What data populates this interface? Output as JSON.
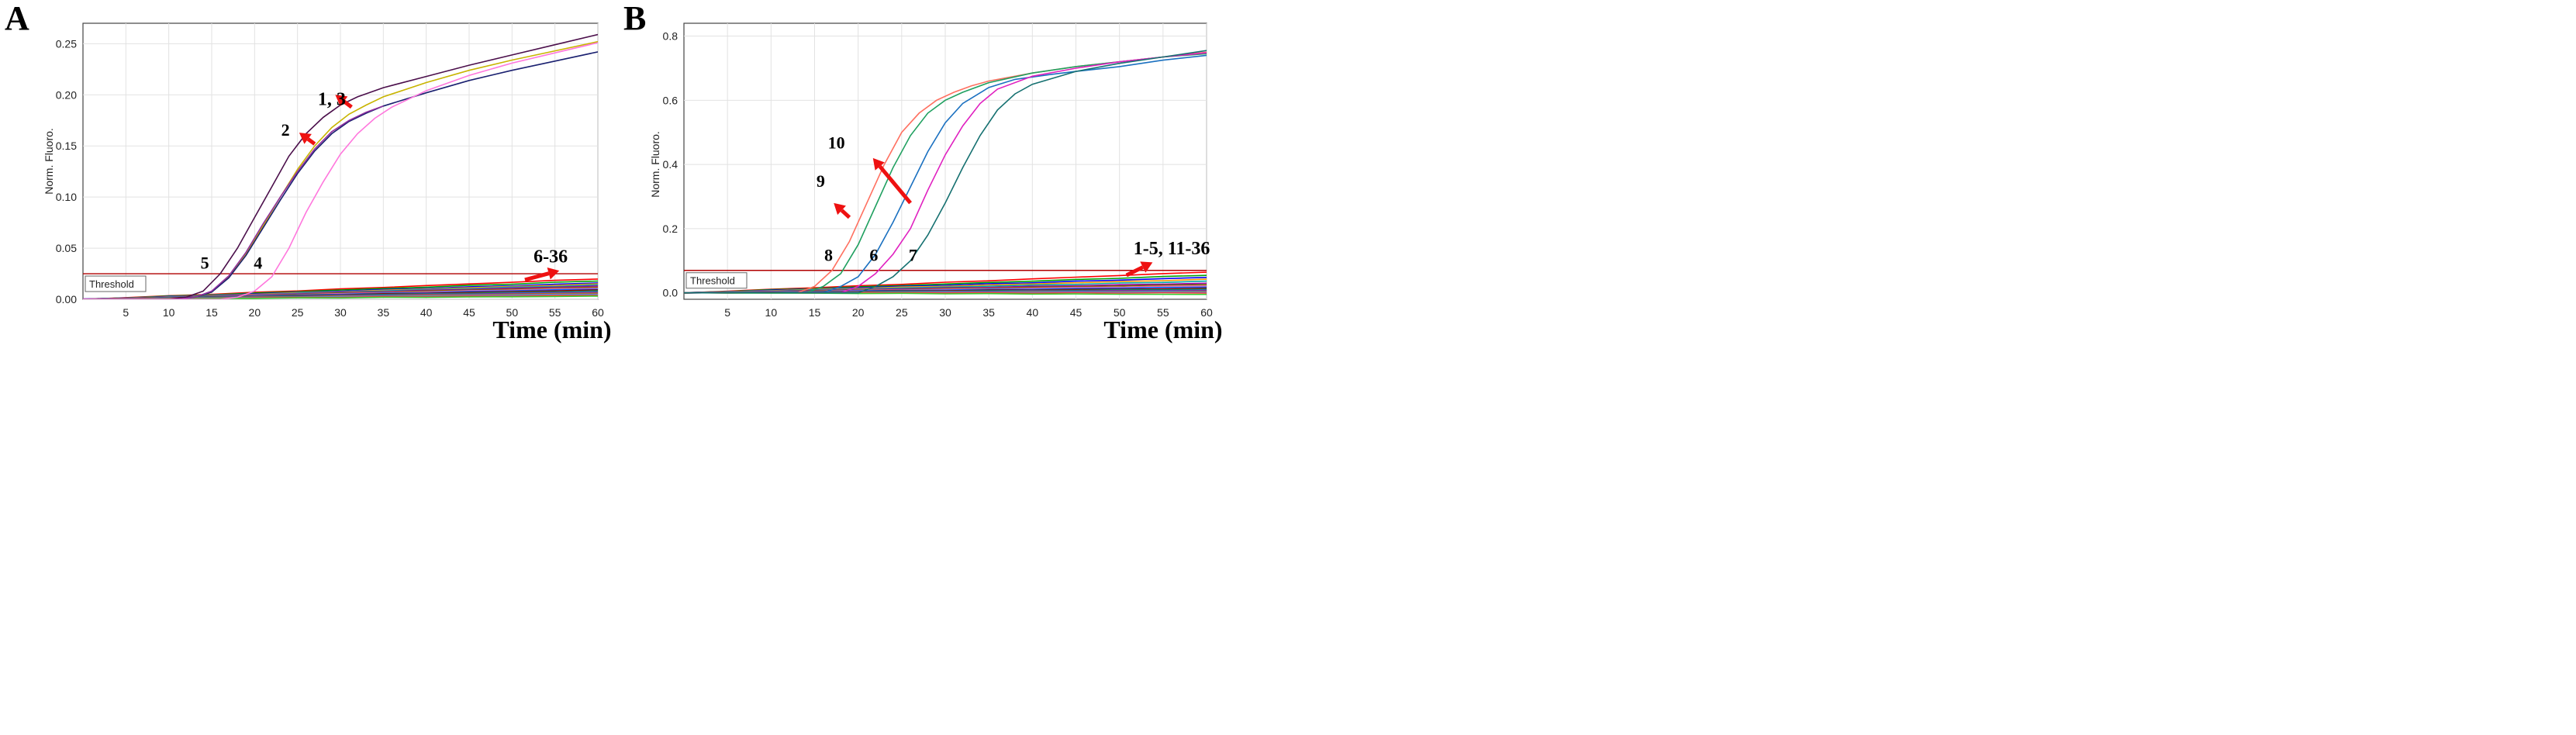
{
  "chart_data": [
    {
      "panel_letter": "A",
      "type": "line",
      "ylabel": "Norm. Fluoro.",
      "xlabel": "Time (min)",
      "xlim": [
        0,
        60
      ],
      "ylim": [
        0,
        0.27
      ],
      "x_ticks": [
        5,
        10,
        15,
        20,
        25,
        30,
        35,
        40,
        45,
        50,
        55,
        60
      ],
      "y_ticks": [
        0.0,
        0.05,
        0.1,
        0.15,
        0.2,
        0.25
      ],
      "y_tick_labels": [
        "0.00",
        "0.05",
        "0.10",
        "0.15",
        "0.20",
        "0.25"
      ],
      "grid": true,
      "threshold": {
        "label": "Threshold",
        "value": 0.025,
        "color": "#b00000"
      },
      "series": [
        {
          "color": "#4b0f4b",
          "values": [
            [
              0,
              0
            ],
            [
              10,
              0
            ],
            [
              12,
              0.002
            ],
            [
              14,
              0.008
            ],
            [
              16,
              0.025
            ],
            [
              18,
              0.05
            ],
            [
              20,
              0.08
            ],
            [
              22,
              0.11
            ],
            [
              24,
              0.14
            ],
            [
              26,
              0.162
            ],
            [
              28,
              0.178
            ],
            [
              30,
              0.19
            ],
            [
              32,
              0.198
            ],
            [
              35,
              0.207
            ],
            [
              40,
              0.218
            ],
            [
              45,
              0.229
            ],
            [
              50,
              0.239
            ],
            [
              55,
              0.249
            ],
            [
              60,
              0.259
            ]
          ]
        },
        {
          "color": "#c8b400",
          "values": [
            [
              0,
              0
            ],
            [
              11,
              0
            ],
            [
              13,
              0.002
            ],
            [
              15,
              0.007
            ],
            [
              17,
              0.022
            ],
            [
              19,
              0.045
            ],
            [
              21,
              0.072
            ],
            [
              23,
              0.1
            ],
            [
              25,
              0.127
            ],
            [
              27,
              0.15
            ],
            [
              29,
              0.168
            ],
            [
              31,
              0.181
            ],
            [
              33,
              0.19
            ],
            [
              35,
              0.198
            ],
            [
              40,
              0.212
            ],
            [
              45,
              0.224
            ],
            [
              50,
              0.234
            ],
            [
              55,
              0.243
            ],
            [
              60,
              0.252
            ]
          ]
        },
        {
          "color": "#1a2070",
          "values": [
            [
              0,
              0
            ],
            [
              11,
              0
            ],
            [
              13,
              0.002
            ],
            [
              15,
              0.007
            ],
            [
              17,
              0.021
            ],
            [
              19,
              0.043
            ],
            [
              21,
              0.07
            ],
            [
              23,
              0.097
            ],
            [
              25,
              0.123
            ],
            [
              27,
              0.145
            ],
            [
              29,
              0.162
            ],
            [
              31,
              0.174
            ],
            [
              33,
              0.182
            ],
            [
              35,
              0.189
            ],
            [
              40,
              0.202
            ],
            [
              45,
              0.214
            ],
            [
              50,
              0.224
            ],
            [
              55,
              0.233
            ],
            [
              60,
              0.242
            ]
          ]
        },
        {
          "color": "#9030a0",
          "values": [
            [
              0,
              0
            ],
            [
              11,
              0
            ],
            [
              13,
              0.002
            ],
            [
              15,
              0.008
            ],
            [
              17,
              0.023
            ],
            [
              19,
              0.046
            ],
            [
              21,
              0.074
            ],
            [
              23,
              0.1
            ],
            [
              25,
              0.125
            ],
            [
              27,
              0.147
            ],
            [
              29,
              0.164
            ],
            [
              31,
              0.175
            ],
            [
              33,
              0.183
            ],
            [
              35,
              0.189
            ]
          ]
        },
        {
          "color": "#ff77dd",
          "values": [
            [
              0,
              0
            ],
            [
              16,
              0
            ],
            [
              18,
              0.002
            ],
            [
              20,
              0.008
            ],
            [
              22,
              0.022
            ],
            [
              24,
              0.05
            ],
            [
              26,
              0.085
            ],
            [
              28,
              0.115
            ],
            [
              30,
              0.142
            ],
            [
              32,
              0.162
            ],
            [
              34,
              0.177
            ],
            [
              36,
              0.188
            ],
            [
              40,
              0.204
            ],
            [
              45,
              0.219
            ],
            [
              50,
              0.231
            ],
            [
              55,
              0.241
            ],
            [
              60,
              0.251
            ]
          ]
        }
      ],
      "baseline_colors": [
        "#ff0000",
        "#00a000",
        "#0000ff",
        "#ff9900",
        "#00aaaa",
        "#aa00aa",
        "#666600",
        "#ff66aa",
        "#0066ff",
        "#990000",
        "#009966",
        "#6633cc",
        "#cc6600",
        "#3399ff",
        "#ff3333",
        "#33cc33"
      ],
      "baseline_series_end_values": [
        0.02,
        0.018,
        0.016,
        0.015,
        0.014,
        0.013,
        0.012,
        0.011,
        0.01,
        0.009,
        0.008,
        0.007,
        0.006,
        0.005,
        0.004,
        0.003
      ],
      "annotations": [
        {
          "text": "5",
          "x": 14.2,
          "y": 0.03
        },
        {
          "text": "4",
          "x": 20.4,
          "y": 0.03
        },
        {
          "text": "2",
          "x": 23.6,
          "y": 0.16
        },
        {
          "text": "1, 3",
          "x": 29.0,
          "y": 0.19
        },
        {
          "text": "6-36",
          "x": 54.5,
          "y": 0.036
        }
      ],
      "arrows": [
        {
          "x1": 27.0,
          "y1": 0.152,
          "x2": 25.2,
          "y2": 0.163
        },
        {
          "x1": 31.3,
          "y1": 0.188,
          "x2": 29.4,
          "y2": 0.2
        },
        {
          "x1": 51.5,
          "y1": 0.019,
          "x2": 55.5,
          "y2": 0.028
        }
      ]
    },
    {
      "panel_letter": "B",
      "type": "line",
      "ylabel": "Norm. Fluoro.",
      "xlabel": "Time (min)",
      "xlim": [
        0,
        60
      ],
      "ylim": [
        -0.02,
        0.84
      ],
      "x_ticks": [
        5,
        10,
        15,
        20,
        25,
        30,
        35,
        40,
        45,
        50,
        55,
        60
      ],
      "y_ticks": [
        0.0,
        0.2,
        0.4,
        0.6,
        0.8
      ],
      "y_tick_labels": [
        "0.0",
        "0.2",
        "0.4",
        "0.6",
        "0.8"
      ],
      "grid": true,
      "threshold": {
        "label": "Threshold",
        "value": 0.07,
        "color": "#b00000"
      },
      "series": [
        {
          "color": "#ff7060",
          "values": [
            [
              0,
              0
            ],
            [
              13,
              0
            ],
            [
              15,
              0.02
            ],
            [
              17,
              0.07
            ],
            [
              19,
              0.16
            ],
            [
              21,
              0.28
            ],
            [
              23,
              0.4
            ],
            [
              25,
              0.5
            ],
            [
              27,
              0.56
            ],
            [
              29,
              0.6
            ],
            [
              31,
              0.625
            ],
            [
              33,
              0.645
            ],
            [
              35,
              0.66
            ],
            [
              40,
              0.685
            ],
            [
              45,
              0.705
            ],
            [
              50,
              0.72
            ],
            [
              55,
              0.735
            ],
            [
              60,
              0.75
            ]
          ]
        },
        {
          "color": "#20a060",
          "values": [
            [
              0,
              0
            ],
            [
              14,
              0
            ],
            [
              16,
              0.02
            ],
            [
              18,
              0.06
            ],
            [
              20,
              0.15
            ],
            [
              22,
              0.27
            ],
            [
              24,
              0.39
            ],
            [
              26,
              0.49
            ],
            [
              28,
              0.56
            ],
            [
              30,
              0.6
            ],
            [
              32,
              0.625
            ],
            [
              35,
              0.655
            ],
            [
              40,
              0.685
            ],
            [
              45,
              0.705
            ],
            [
              50,
              0.72
            ],
            [
              55,
              0.735
            ],
            [
              60,
              0.745
            ]
          ]
        },
        {
          "color": "#1a70c0",
          "values": [
            [
              0,
              0
            ],
            [
              16,
              0
            ],
            [
              18,
              0.02
            ],
            [
              20,
              0.05
            ],
            [
              22,
              0.12
            ],
            [
              24,
              0.22
            ],
            [
              26,
              0.33
            ],
            [
              28,
              0.44
            ],
            [
              30,
              0.53
            ],
            [
              32,
              0.59
            ],
            [
              35,
              0.64
            ],
            [
              38,
              0.665
            ],
            [
              42,
              0.68
            ],
            [
              45,
              0.69
            ],
            [
              50,
              0.705
            ],
            [
              55,
              0.725
            ],
            [
              60,
              0.74
            ]
          ]
        },
        {
          "color": "#e020c0",
          "values": [
            [
              0,
              0
            ],
            [
              18,
              0
            ],
            [
              20,
              0.02
            ],
            [
              22,
              0.06
            ],
            [
              24,
              0.12
            ],
            [
              26,
              0.2
            ],
            [
              28,
              0.32
            ],
            [
              30,
              0.43
            ],
            [
              32,
              0.52
            ],
            [
              34,
              0.59
            ],
            [
              36,
              0.635
            ],
            [
              40,
              0.675
            ],
            [
              45,
              0.7
            ],
            [
              50,
              0.72
            ],
            [
              55,
              0.735
            ],
            [
              60,
              0.748
            ]
          ]
        },
        {
          "color": "#157070",
          "values": [
            [
              0,
              0
            ],
            [
              20,
              0
            ],
            [
              22,
              0.02
            ],
            [
              24,
              0.05
            ],
            [
              26,
              0.1
            ],
            [
              28,
              0.18
            ],
            [
              30,
              0.28
            ],
            [
              32,
              0.39
            ],
            [
              34,
              0.49
            ],
            [
              36,
              0.57
            ],
            [
              38,
              0.62
            ],
            [
              40,
              0.65
            ],
            [
              45,
              0.69
            ],
            [
              50,
              0.715
            ],
            [
              55,
              0.735
            ],
            [
              60,
              0.755
            ]
          ]
        }
      ],
      "baseline_colors": [
        "#ff0000",
        "#00a000",
        "#0000ff",
        "#ff9900",
        "#00aaaa",
        "#aa00aa",
        "#666600",
        "#ff66aa",
        "#0066ff",
        "#990000",
        "#009966",
        "#6633cc",
        "#cc6600",
        "#3399ff",
        "#ff3333",
        "#33cc33"
      ],
      "baseline_series_end_values": [
        0.065,
        0.055,
        0.048,
        0.042,
        0.036,
        0.03,
        0.026,
        0.022,
        0.018,
        0.014,
        0.011,
        0.008,
        0.005,
        0.003,
        0.0,
        -0.005
      ],
      "annotations": [
        {
          "text": "10",
          "x": 17.5,
          "y": 0.45
        },
        {
          "text": "9",
          "x": 15.7,
          "y": 0.33
        },
        {
          "text": "8",
          "x": 16.6,
          "y": 0.1
        },
        {
          "text": "6",
          "x": 21.8,
          "y": 0.1
        },
        {
          "text": "7",
          "x": 26.3,
          "y": 0.1
        },
        {
          "text": "1-5, 11-36",
          "x": 56.0,
          "y": 0.12
        }
      ],
      "arrows": [
        {
          "x1": 26.0,
          "y1": 0.28,
          "x2": 21.7,
          "y2": 0.42
        },
        {
          "x1": 19.0,
          "y1": 0.235,
          "x2": 17.2,
          "y2": 0.28
        },
        {
          "x1": 50.8,
          "y1": 0.055,
          "x2": 53.8,
          "y2": 0.095
        }
      ]
    }
  ]
}
